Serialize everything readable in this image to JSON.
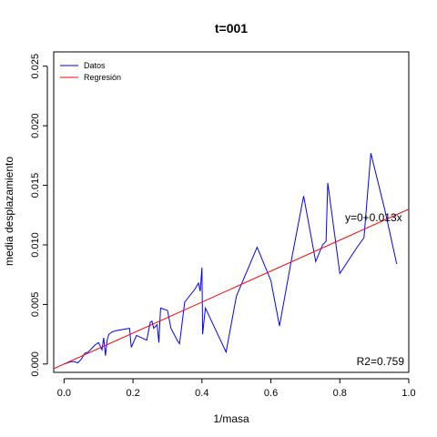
{
  "chart_data": {
    "type": "line",
    "title": "t=001",
    "xlabel": "1/masa",
    "ylabel": "media desplazamiento",
    "xlim": [
      -0.03,
      1.0
    ],
    "ylim": [
      -0.0007,
      0.0262
    ],
    "x_ticks": [
      0.0,
      0.2,
      0.4,
      0.6,
      0.8,
      1.0
    ],
    "x_tick_labels": [
      "0.0",
      "0.2",
      "0.4",
      "0.6",
      "0.8",
      "1.0"
    ],
    "y_ticks": [
      0.0,
      0.005,
      0.01,
      0.015,
      0.02,
      0.025
    ],
    "y_tick_labels": [
      "0.000",
      "0.005",
      "0.010",
      "0.015",
      "0.020",
      "0.025"
    ],
    "grid": false,
    "legend": {
      "position": "top-left",
      "entries": [
        {
          "label": "Datos",
          "color": "#0000ff"
        },
        {
          "label": "Regresión",
          "color": "#ff0000"
        }
      ]
    },
    "series": [
      {
        "name": "Datos",
        "color": "#0000ff",
        "points": [
          [
            0.0,
            0.0
          ],
          [
            0.01,
            0.0001
          ],
          [
            0.02,
            0.0002
          ],
          [
            0.03,
            0.0002
          ],
          [
            0.04,
            0.0001
          ],
          [
            0.05,
            0.0004
          ],
          [
            0.06,
            0.0009
          ],
          [
            0.07,
            0.001
          ],
          [
            0.08,
            0.0013
          ],
          [
            0.09,
            0.0016
          ],
          [
            0.1,
            0.0018
          ],
          [
            0.11,
            0.0012
          ],
          [
            0.115,
            0.0022
          ],
          [
            0.12,
            0.0007
          ],
          [
            0.125,
            0.002
          ],
          [
            0.13,
            0.0025
          ],
          [
            0.14,
            0.0027
          ],
          [
            0.15,
            0.0028
          ],
          [
            0.19,
            0.003
          ],
          [
            0.195,
            0.0014
          ],
          [
            0.21,
            0.0024
          ],
          [
            0.24,
            0.002
          ],
          [
            0.25,
            0.0035
          ],
          [
            0.255,
            0.0036
          ],
          [
            0.26,
            0.003
          ],
          [
            0.27,
            0.0033
          ],
          [
            0.275,
            0.0018
          ],
          [
            0.28,
            0.0047
          ],
          [
            0.3,
            0.0045
          ],
          [
            0.31,
            0.003
          ],
          [
            0.33,
            0.0019
          ],
          [
            0.335,
            0.0017
          ],
          [
            0.35,
            0.0052
          ],
          [
            0.38,
            0.0063
          ],
          [
            0.39,
            0.0068
          ],
          [
            0.395,
            0.0061
          ],
          [
            0.4,
            0.0081
          ],
          [
            0.402,
            0.0025
          ],
          [
            0.41,
            0.0047
          ],
          [
            0.47,
            0.001
          ],
          [
            0.5,
            0.0057
          ],
          [
            0.56,
            0.0098
          ],
          [
            0.6,
            0.007
          ],
          [
            0.625,
            0.0032
          ],
          [
            0.66,
            0.0088
          ],
          [
            0.695,
            0.0141
          ],
          [
            0.73,
            0.0086
          ],
          [
            0.75,
            0.01
          ],
          [
            0.76,
            0.0103
          ],
          [
            0.765,
            0.0152
          ],
          [
            0.8,
            0.0076
          ],
          [
            0.85,
            0.0098
          ],
          [
            0.87,
            0.0106
          ],
          [
            0.89,
            0.0177
          ],
          [
            0.93,
            0.013
          ],
          [
            0.965,
            0.0084
          ]
        ]
      }
    ],
    "regression": {
      "name": "Regresión",
      "intercept": 0.0,
      "slope": 0.013,
      "color": "#ff0000"
    },
    "annotations": [
      {
        "text": "y=0+0.013x",
        "x": 0.815,
        "y": 0.0123
      },
      {
        "text": "R2=0.759",
        "position": "bottom-right"
      }
    ]
  }
}
